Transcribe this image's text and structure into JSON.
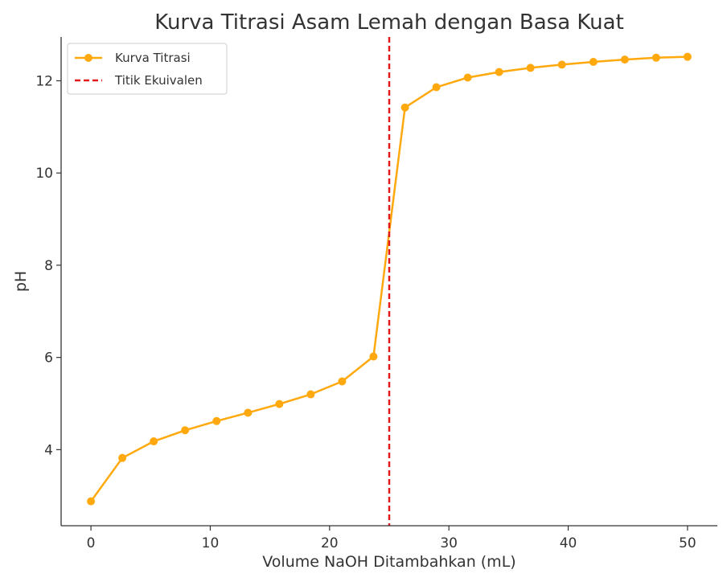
{
  "chart_data": {
    "type": "line",
    "title": "Kurva Titrasi Asam Lemah dengan Basa Kuat",
    "xlabel": "Volume NaOH Ditambahkan (mL)",
    "ylabel": "pH",
    "xlim": [
      -2.5,
      52.5
    ],
    "ylim": [
      2.35,
      12.95
    ],
    "xticks": [
      0,
      10,
      20,
      30,
      40,
      50
    ],
    "yticks": [
      4,
      6,
      8,
      10,
      12
    ],
    "grid": false,
    "legend_position": "top-left",
    "series": [
      {
        "name": "Kurva Titrasi",
        "color": "#FFA90E",
        "marker": "circle",
        "x": [
          0,
          2.63,
          5.26,
          7.89,
          10.53,
          13.16,
          15.79,
          18.42,
          21.05,
          23.68,
          26.32,
          28.95,
          31.58,
          34.21,
          36.84,
          39.47,
          42.11,
          44.74,
          47.37,
          50
        ],
        "y": [
          2.88,
          3.82,
          4.18,
          4.42,
          4.62,
          4.8,
          4.99,
          5.2,
          5.48,
          6.02,
          11.42,
          11.86,
          12.07,
          12.19,
          12.28,
          12.35,
          12.41,
          12.46,
          12.5,
          12.52
        ]
      }
    ],
    "reference_lines": [
      {
        "name": "Titik Ekuivalen",
        "orientation": "vertical",
        "x": 25,
        "color": "#E31A1C",
        "style": "dashed"
      }
    ]
  }
}
